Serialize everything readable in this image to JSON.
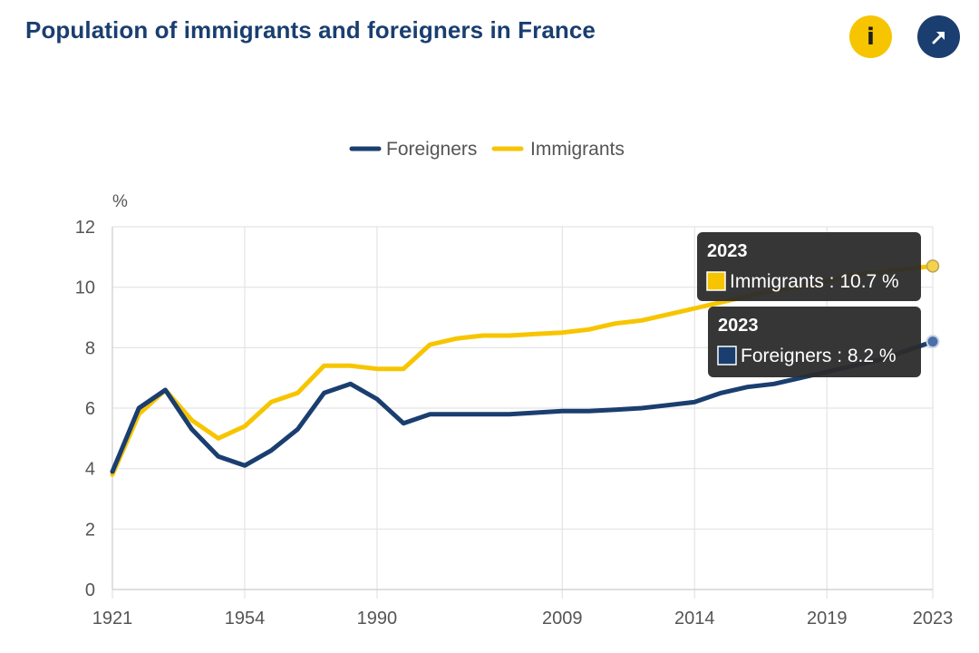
{
  "header": {
    "title": "Population of immigrants and foreigners in France",
    "info_button": {
      "icon": "info-icon",
      "glyph": "i",
      "color": "#f7c500"
    },
    "expand_button": {
      "icon": "expand-arrow-icon",
      "color": "#1a3e6f"
    }
  },
  "chart_data": {
    "type": "line",
    "title": "Population of immigrants and foreigners in France",
    "ylabel": "%",
    "xlabel": "",
    "ylim": [
      0,
      12
    ],
    "y_ticks": [
      0,
      2,
      4,
      6,
      8,
      10,
      12
    ],
    "x_tick_labels": [
      "1921",
      "1954",
      "1990",
      "2009",
      "2014",
      "2019",
      "2023"
    ],
    "grid": true,
    "legend_position": "top-center",
    "categories": [
      "1921",
      "1926",
      "1931",
      "1936",
      "1946",
      "1954",
      "1962",
      "1968",
      "1975",
      "1982",
      "1990",
      "1999",
      "2004",
      "2005",
      "2006",
      "2007",
      "2008",
      "2009",
      "2010",
      "2011",
      "2012",
      "2013",
      "2014",
      "2015",
      "2016",
      "2017",
      "2018",
      "2019",
      "2020",
      "2021",
      "2022",
      "2023"
    ],
    "series": [
      {
        "name": "Foreigners",
        "color": "#1a3e6f",
        "values": [
          3.9,
          6.0,
          6.6,
          5.3,
          4.4,
          4.1,
          4.6,
          5.3,
          6.5,
          6.8,
          6.3,
          5.5,
          5.8,
          5.8,
          5.8,
          5.8,
          5.85,
          5.9,
          5.9,
          5.95,
          6.0,
          6.1,
          6.2,
          6.5,
          6.7,
          6.8,
          7.0,
          7.2,
          7.4,
          7.6,
          7.9,
          8.2
        ]
      },
      {
        "name": "Immigrants",
        "color": "#f7c500",
        "values": [
          3.8,
          5.8,
          6.6,
          5.6,
          5.0,
          5.4,
          6.2,
          6.5,
          7.4,
          7.4,
          7.3,
          7.3,
          8.1,
          8.3,
          8.4,
          8.4,
          8.45,
          8.5,
          8.6,
          8.8,
          8.9,
          9.1,
          9.3,
          9.5,
          9.7,
          9.9,
          10.0,
          10.2,
          10.4,
          10.5,
          10.6,
          10.7
        ]
      }
    ],
    "tooltips": [
      {
        "year": "2023",
        "series": "Immigrants",
        "text": "Immigrants : 10.7 %"
      },
      {
        "year": "2023",
        "series": "Foreigners",
        "text": "Foreigners : 8.2 %"
      }
    ]
  }
}
